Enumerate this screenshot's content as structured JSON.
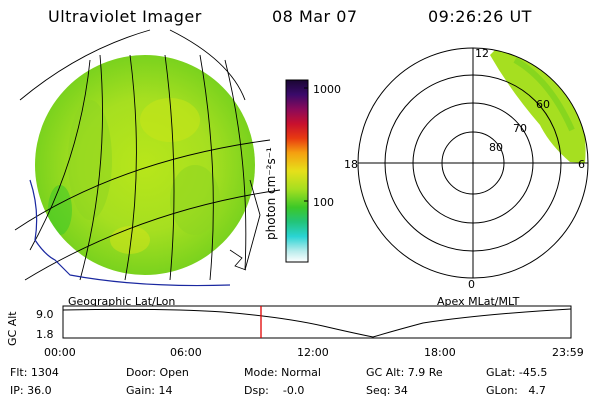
{
  "header": {
    "title": "Ultraviolet Imager",
    "date": "08 Mar 07",
    "time": "09:26:26 UT"
  },
  "colorbar": {
    "label": "photon cm⁻²s⁻¹",
    "ticks": [
      "1000",
      "100"
    ],
    "colors": [
      "#1a0633",
      "#2a0a5a",
      "#550a78",
      "#8a0a5a",
      "#c8102e",
      "#e83a10",
      "#f07a10",
      "#f5b010",
      "#e6e01a",
      "#b8e61a",
      "#7ad21e",
      "#3cc828",
      "#22c47a",
      "#2ad4d4",
      "#7ae6e6",
      "#c8f0f0"
    ]
  },
  "polar": {
    "mlt_labels": [
      "12",
      "18",
      "6",
      "0"
    ],
    "lat_labels": [
      "60",
      "70",
      "80"
    ]
  },
  "panels": {
    "left_caption": "Geographic Lat/Lon",
    "right_caption": "Apex MLat/MLT"
  },
  "altitude": {
    "ylabel": "GC Alt",
    "yticks": [
      "9.0",
      "1.8"
    ],
    "xticks": [
      "00:00",
      "06:00",
      "12:00",
      "18:00",
      "23:59"
    ],
    "current_time_marker": "09:26"
  },
  "info": {
    "flt": "Flt: 1304",
    "ip": "IP: 36.0",
    "door": "Door: Open",
    "gain": "Gain: 14",
    "mode": "Mode: Normal",
    "dsp": "Dsp:    -0.0",
    "gc_alt": "GC Alt: 7.9 Re",
    "seq": "Seq: 34",
    "glat": "GLat: -45.5",
    "glon": "GLon:   4.7"
  }
}
